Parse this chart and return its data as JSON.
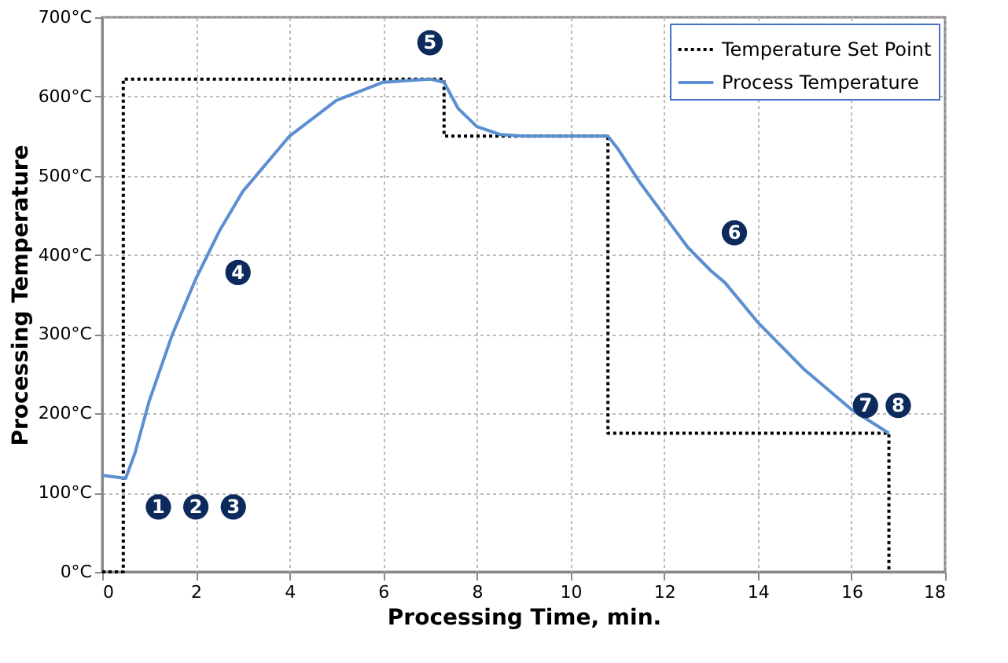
{
  "chart_data": {
    "type": "line",
    "xlabel": "Processing Time, min.",
    "ylabel": "Processing Temperature",
    "xlim": [
      0,
      18
    ],
    "xticks": [
      0,
      2,
      4,
      6,
      8,
      10,
      12,
      14,
      16,
      18
    ],
    "ylim": [
      0,
      700
    ],
    "yticks": [
      {
        "value": 0,
        "label": "0°C"
      },
      {
        "value": 100,
        "label": "100°C"
      },
      {
        "value": 200,
        "label": "200°C"
      },
      {
        "value": 300,
        "label": "300°C"
      },
      {
        "value": 400,
        "label": "400°C"
      },
      {
        "value": 500,
        "label": "500°C"
      },
      {
        "value": 600,
        "label": "600°C"
      },
      {
        "value": 700,
        "label": "700°C"
      }
    ],
    "grid": true,
    "legend": "top right",
    "series": [
      {
        "name": "Temperature Set Point",
        "color": "#000000",
        "line_style": "dotted",
        "x": [
          0,
          0.45,
          0.45,
          7.3,
          7.3,
          10.8,
          10.8,
          16.8,
          16.8
        ],
        "values": [
          0,
          0,
          622,
          622,
          550,
          550,
          175,
          175,
          0
        ]
      },
      {
        "name": "Process Temperature",
        "color": "#5b8fd0",
        "line_style": "solid",
        "x": [
          0,
          0.5,
          0.7,
          1,
          1.5,
          2,
          2.5,
          3,
          4,
          5,
          6,
          7,
          7.3,
          7.6,
          8,
          8.5,
          9,
          10,
          10.8,
          11,
          11.5,
          12,
          12.5,
          13,
          13.3,
          14,
          15,
          16,
          16.8
        ],
        "values": [
          122,
          118,
          150,
          215,
          300,
          370,
          430,
          480,
          550,
          595,
          618,
          622,
          618,
          585,
          562,
          552,
          550,
          550,
          550,
          535,
          490,
          450,
          410,
          380,
          365,
          315,
          255,
          205,
          175
        ]
      }
    ],
    "annotations": [
      {
        "text": "1",
        "x": 1.2,
        "y": 82
      },
      {
        "text": "2",
        "x": 2.0,
        "y": 82
      },
      {
        "text": "3",
        "x": 2.8,
        "y": 82
      },
      {
        "text": "4",
        "x": 2.9,
        "y": 378
      },
      {
        "text": "5",
        "x": 7.0,
        "y": 668
      },
      {
        "text": "6",
        "x": 13.5,
        "y": 428
      },
      {
        "text": "7",
        "x": 16.3,
        "y": 210
      },
      {
        "text": "8",
        "x": 17.0,
        "y": 210
      }
    ]
  }
}
